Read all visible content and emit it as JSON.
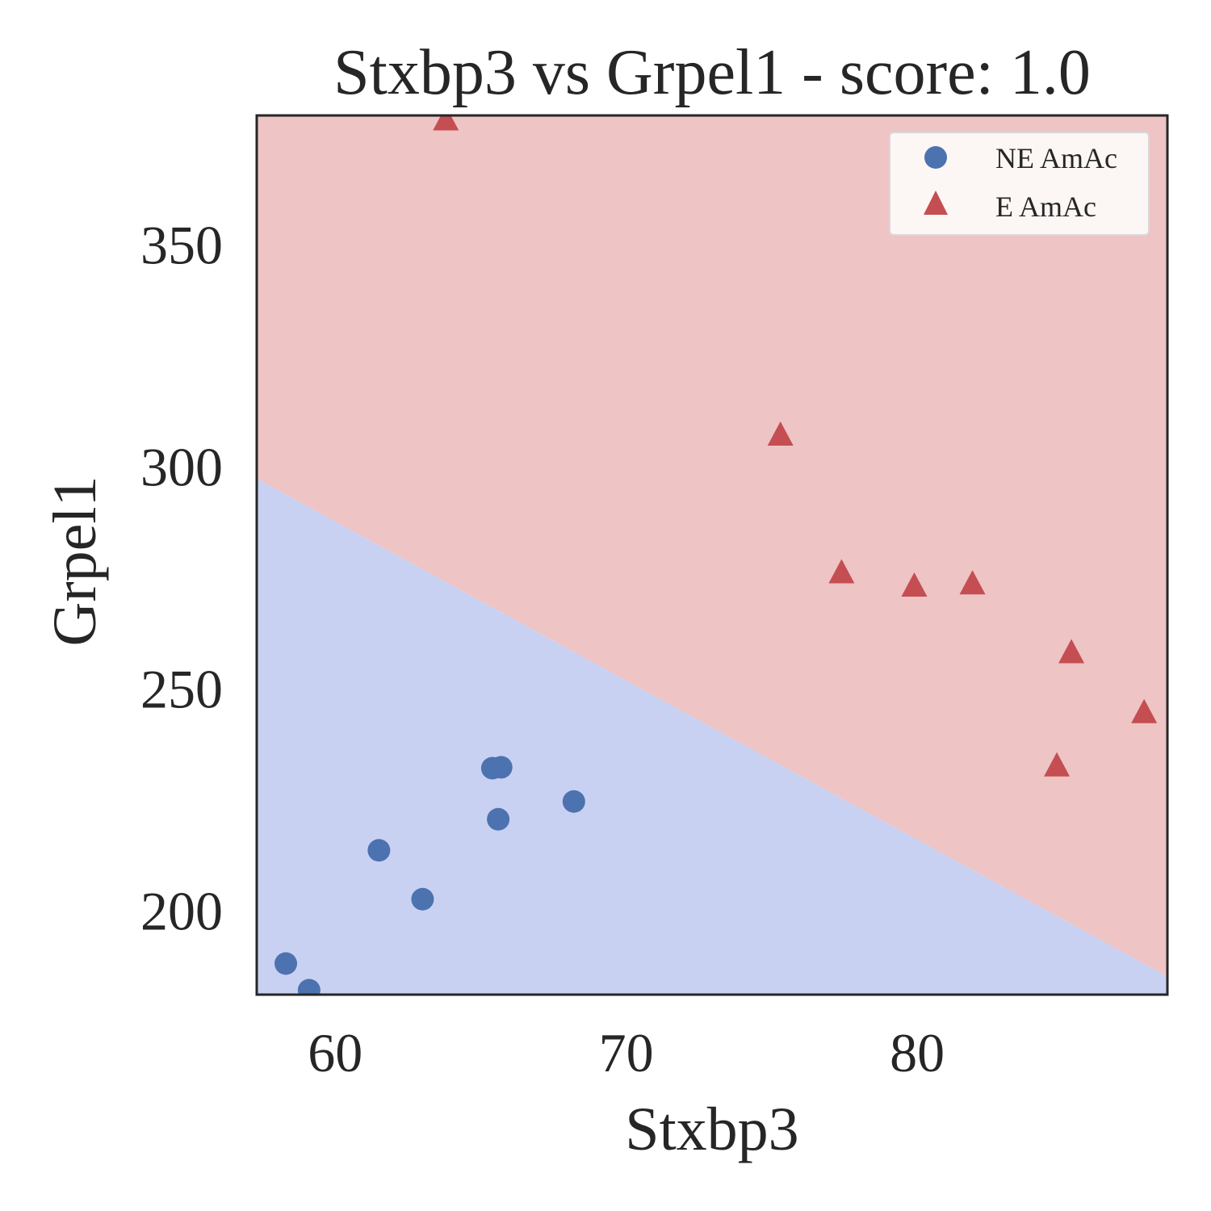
{
  "chart_data": {
    "type": "scatter",
    "title": "Stxbp3 vs Grpel1 - score: 1.0",
    "xlabel": "Stxbp3",
    "ylabel": "Grpel1",
    "xlim": [
      57.3,
      88.6
    ],
    "ylim": [
      181,
      379
    ],
    "xticks": [
      60,
      70,
      80
    ],
    "yticks": [
      200,
      250,
      300,
      350
    ],
    "grid": false,
    "legend_position": "top-right",
    "decision_boundary": {
      "points": [
        [
          57.3,
          297.2
        ],
        [
          88.6,
          185.1
        ]
      ],
      "region_above": "E AmAc",
      "region_below": "NE AmAc"
    },
    "colors": {
      "ne_marker": "#4C72B0",
      "e_marker": "#C44E52",
      "ne_region": "#C9D1F2",
      "e_region": "#EEC4C4",
      "frame": "#262626"
    },
    "series": [
      {
        "name": "NE AmAc",
        "marker": "circle",
        "points": [
          [
            58.3,
            188.0
          ],
          [
            59.1,
            182.0
          ],
          [
            61.5,
            213.5
          ],
          [
            63.0,
            202.5
          ],
          [
            65.4,
            232.0
          ],
          [
            65.7,
            232.2
          ],
          [
            65.6,
            220.5
          ],
          [
            68.2,
            224.5
          ]
        ]
      },
      {
        "name": "E AmAc",
        "marker": "triangle",
        "points": [
          [
            63.8,
            378.0
          ],
          [
            75.3,
            307.0
          ],
          [
            77.4,
            276.0
          ],
          [
            79.9,
            273.0
          ],
          [
            81.9,
            273.5
          ],
          [
            84.8,
            232.5
          ],
          [
            85.3,
            258.0
          ],
          [
            87.8,
            244.5
          ]
        ]
      }
    ]
  }
}
